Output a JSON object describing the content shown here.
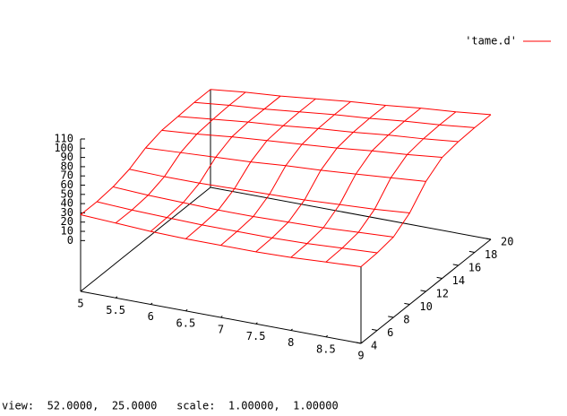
{
  "chart_data": {
    "type": "surface",
    "x": [
      5,
      5.5,
      6,
      6.5,
      7,
      7.5,
      8,
      8.5,
      9
    ],
    "y": [
      4,
      6,
      8,
      10,
      12,
      14,
      16,
      18,
      20
    ],
    "series": [
      {
        "name": "'tame.d'",
        "color": "#ff0000",
        "values": [
          [
            28,
            26,
            24,
            23,
            23,
            23,
            24,
            26,
            28
          ],
          [
            28,
            26,
            25,
            24,
            24,
            24,
            25,
            27,
            29
          ],
          [
            30,
            28,
            27,
            26,
            26,
            27,
            28,
            30,
            32
          ],
          [
            35,
            34,
            34,
            35,
            36,
            37,
            39,
            41,
            44
          ],
          [
            44,
            46,
            48,
            50,
            53,
            55,
            58,
            61,
            64
          ],
          [
            49,
            52,
            56,
            59,
            62,
            65,
            69,
            72,
            76
          ],
          [
            50,
            54,
            58,
            61,
            65,
            68,
            72,
            75,
            79
          ],
          [
            51,
            55,
            58,
            62,
            66,
            69,
            73,
            76,
            80
          ],
          [
            51,
            55,
            58,
            62,
            66,
            69,
            73,
            76,
            80
          ]
        ]
      }
    ],
    "xlim": [
      5,
      9
    ],
    "ylim": [
      4,
      20
    ],
    "zlim": [
      0,
      110
    ],
    "ticslevel": 0.5,
    "xticks": [
      5,
      5.5,
      6,
      6.5,
      7,
      7.5,
      8,
      8.5,
      9
    ],
    "yticks": [
      4,
      6,
      8,
      10,
      12,
      14,
      16,
      18,
      20
    ],
    "zticks": [
      0,
      10,
      20,
      30,
      40,
      50,
      60,
      70,
      80,
      90,
      100,
      110
    ],
    "legend": "top-right",
    "status": "view:  52.0000,  25.0000   scale:  1.00000,  1.00000"
  }
}
